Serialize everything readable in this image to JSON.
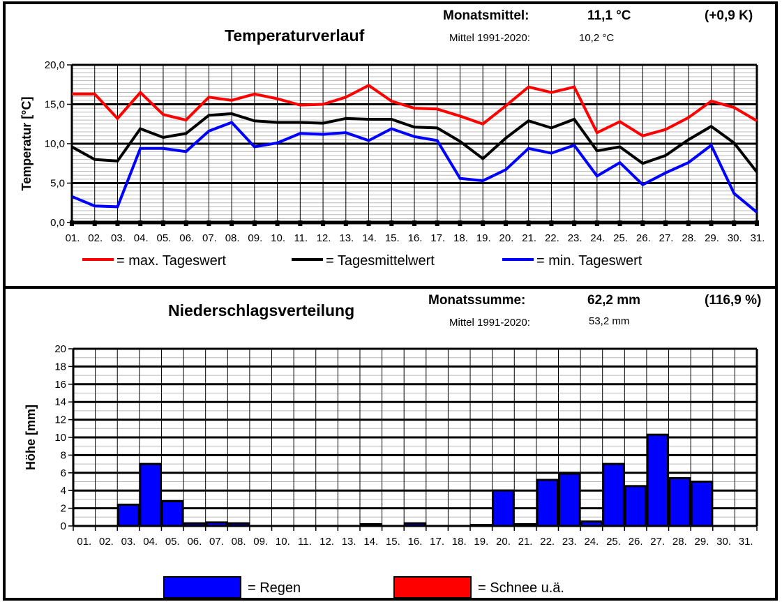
{
  "chart_data": [
    {
      "type": "line",
      "title": "Temperaturverlauf",
      "ylabel": "Temperatur [°C]",
      "xlabel": "",
      "ylim": [
        0,
        20
      ],
      "yticks": [
        "0,0",
        "5,0",
        "10,0",
        "15,0",
        "20,0"
      ],
      "ytick_values": [
        0,
        5,
        10,
        15,
        20
      ],
      "grid": true,
      "categories": [
        "01.",
        "02.",
        "03.",
        "04.",
        "05.",
        "06.",
        "07.",
        "08.",
        "09.",
        "10.",
        "11.",
        "12.",
        "13.",
        "14.",
        "15.",
        "16.",
        "17.",
        "18.",
        "19.",
        "20.",
        "21.",
        "22.",
        "23.",
        "24.",
        "25.",
        "26.",
        "27.",
        "28.",
        "29.",
        "30.",
        "31."
      ],
      "series": [
        {
          "name": "= max.  Tageswert",
          "color": "#ff0000",
          "values": [
            16.3,
            16.3,
            13.2,
            16.5,
            13.7,
            13.0,
            15.9,
            15.5,
            16.3,
            15.7,
            14.9,
            15.0,
            15.9,
            17.4,
            15.4,
            14.5,
            14.4,
            13.5,
            12.5,
            14.8,
            17.2,
            16.5,
            17.2,
            11.4,
            12.8,
            11.0,
            11.8,
            13.3,
            15.4,
            14.6,
            12.9
          ]
        },
        {
          "name": "= Tagesmittelwert",
          "color": "#000000",
          "values": [
            9.6,
            8.0,
            7.8,
            11.9,
            10.8,
            11.3,
            13.6,
            13.8,
            12.9,
            12.7,
            12.7,
            12.6,
            13.2,
            13.1,
            13.1,
            12.1,
            12.0,
            10.3,
            8.1,
            10.7,
            12.9,
            12.0,
            13.1,
            9.1,
            9.6,
            7.5,
            8.5,
            10.5,
            12.2,
            10.1,
            6.4
          ]
        },
        {
          "name": "= min. Tageswert",
          "color": "#0000ff",
          "values": [
            3.3,
            2.1,
            2.0,
            9.4,
            9.4,
            9.0,
            11.6,
            12.7,
            9.6,
            10.1,
            11.3,
            11.2,
            11.4,
            10.4,
            11.9,
            10.9,
            10.4,
            5.6,
            5.3,
            6.7,
            9.4,
            8.8,
            9.8,
            5.9,
            7.6,
            4.8,
            6.3,
            7.6,
            9.8,
            3.7,
            1.3
          ]
        }
      ],
      "legend": "bottom",
      "stats": {
        "monthly_label": "Monatsmittel:",
        "monthly_value": "11,1 °C",
        "anomaly": "(+0,9 K)",
        "ref_label": "Mittel 1991-2020:",
        "ref_value": "10,2  °C"
      }
    },
    {
      "type": "bar",
      "title": "Niederschlagsverteilung",
      "ylabel": "Höhe [mm]",
      "xlabel": "",
      "ylim": [
        0,
        20
      ],
      "yticks": [
        "0",
        "2",
        "4",
        "6",
        "8",
        "10",
        "12",
        "14",
        "16",
        "18",
        "20"
      ],
      "ytick_values": [
        0,
        2,
        4,
        6,
        8,
        10,
        12,
        14,
        16,
        18,
        20
      ],
      "grid": true,
      "categories": [
        "01.",
        "02.",
        "03.",
        "04.",
        "05.",
        "06.",
        "07.",
        "08.",
        "09.",
        "10.",
        "11.",
        "12.",
        "13.",
        "14.",
        "15.",
        "16.",
        "17.",
        "18.",
        "19.",
        "20.",
        "21.",
        "22.",
        "23.",
        "24.",
        "25.",
        "26.",
        "27.",
        "28.",
        "29.",
        "30.",
        "31."
      ],
      "series": [
        {
          "name": "= Regen",
          "color": "#0000ff",
          "values": [
            0,
            0,
            2.4,
            7.0,
            2.8,
            0.3,
            0.4,
            0.3,
            0,
            0,
            0,
            0,
            0,
            0.2,
            0,
            0.3,
            0,
            0,
            0.1,
            4.0,
            0.2,
            5.2,
            5.9,
            0.5,
            7.0,
            4.5,
            10.3,
            5.4,
            5.0,
            0,
            0
          ]
        },
        {
          "name": "= Schnee u.ä.",
          "color": "#ff0000",
          "values": [
            0,
            0,
            0,
            0,
            0,
            0,
            0,
            0,
            0,
            0,
            0,
            0,
            0,
            0,
            0,
            0,
            0,
            0,
            0,
            0,
            0,
            0,
            0,
            0,
            0,
            0,
            0,
            0,
            0,
            0,
            0
          ]
        }
      ],
      "legend": "bottom",
      "stats": {
        "monthly_label": "Monatssumme:",
        "monthly_value": "62,2  mm",
        "anomaly": "(116,9 %)",
        "ref_label": "Mittel 1991-2020:",
        "ref_value": "53,2  mm"
      }
    }
  ]
}
